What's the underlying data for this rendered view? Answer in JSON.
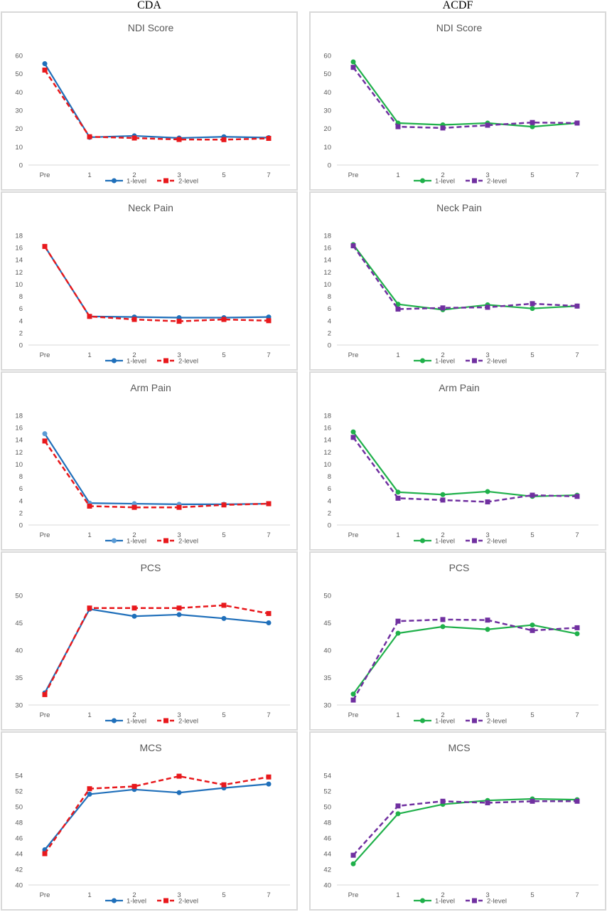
{
  "headers": {
    "left": "CDA",
    "right": "ACDF"
  },
  "chart_data": [
    {
      "type": "line",
      "group": "CDA",
      "title": "NDI Score",
      "categories": [
        "Pre",
        "1",
        "2",
        "3",
        "5",
        "7"
      ],
      "ylim": [
        0,
        60
      ],
      "yticks": [
        0,
        10,
        20,
        30,
        40,
        50,
        60
      ],
      "grid": false,
      "legend": "bottom",
      "series": [
        {
          "name": "1-level",
          "values": [
            55.5,
            15.2,
            16.0,
            14.8,
            15.5,
            15.0
          ],
          "color": "#1f6fba",
          "dash": false,
          "marker": "circle"
        },
        {
          "name": "2-level",
          "values": [
            52.0,
            15.5,
            14.8,
            14.0,
            13.9,
            14.6
          ],
          "color": "#e8181c",
          "dash": true,
          "marker": "square"
        }
      ]
    },
    {
      "type": "line",
      "group": "ACDF",
      "title": "NDI Score",
      "categories": [
        "Pre",
        "1",
        "2",
        "3",
        "5",
        "7"
      ],
      "ylim": [
        0,
        60
      ],
      "yticks": [
        0,
        10,
        20,
        30,
        40,
        50,
        60
      ],
      "grid": false,
      "legend": "bottom",
      "series": [
        {
          "name": "1-level",
          "values": [
            56.5,
            23.0,
            22.0,
            23.0,
            21.0,
            23.0
          ],
          "color": "#1fb04a",
          "dash": false,
          "marker": "circle"
        },
        {
          "name": "2-level",
          "values": [
            53.5,
            21.0,
            20.3,
            21.8,
            23.3,
            23.0
          ],
          "color": "#7030a0",
          "dash": true,
          "marker": "square"
        }
      ]
    },
    {
      "type": "line",
      "group": "CDA",
      "title": "Neck Pain",
      "categories": [
        "Pre",
        "1",
        "2",
        "3",
        "5",
        "7"
      ],
      "ylim": [
        0,
        18
      ],
      "yticks": [
        0,
        2,
        4,
        6,
        8,
        10,
        12,
        14,
        16,
        18
      ],
      "grid": false,
      "legend": "bottom",
      "series": [
        {
          "name": "1-level",
          "values": [
            16.2,
            4.7,
            4.6,
            4.5,
            4.5,
            4.6
          ],
          "color": "#1f6fba",
          "dash": false,
          "marker": "circle"
        },
        {
          "name": "2-level",
          "values": [
            16.2,
            4.7,
            4.2,
            3.9,
            4.2,
            4.0
          ],
          "color": "#e8181c",
          "dash": true,
          "marker": "square"
        }
      ]
    },
    {
      "type": "line",
      "group": "ACDF",
      "title": "Neck Pain",
      "categories": [
        "Pre",
        "1",
        "2",
        "3",
        "5",
        "7"
      ],
      "ylim": [
        0,
        18
      ],
      "yticks": [
        0,
        2,
        4,
        6,
        8,
        10,
        12,
        14,
        16,
        18
      ],
      "grid": false,
      "legend": "bottom",
      "series": [
        {
          "name": "1-level",
          "values": [
            16.5,
            6.7,
            5.8,
            6.6,
            6.0,
            6.4
          ],
          "color": "#1fb04a",
          "dash": false,
          "marker": "circle"
        },
        {
          "name": "2-level",
          "values": [
            16.3,
            5.9,
            6.1,
            6.2,
            6.8,
            6.4
          ],
          "color": "#7030a0",
          "dash": true,
          "marker": "square"
        }
      ]
    },
    {
      "type": "line",
      "group": "CDA",
      "title": "Arm Pain",
      "categories": [
        "Pre",
        "1",
        "2",
        "3",
        "5",
        "7"
      ],
      "ylim": [
        0,
        18
      ],
      "yticks": [
        0,
        2,
        4,
        6,
        8,
        10,
        12,
        14,
        16,
        18
      ],
      "grid": false,
      "legend": "bottom",
      "series": [
        {
          "name": "1-level",
          "values": [
            15.0,
            3.6,
            3.5,
            3.4,
            3.4,
            3.5
          ],
          "color": "#1f6fba",
          "dash": false,
          "marker": "circle",
          "marker_color": "#5b9bd5"
        },
        {
          "name": "2-level",
          "values": [
            13.8,
            3.1,
            2.9,
            2.9,
            3.3,
            3.5
          ],
          "color": "#e8181c",
          "dash": true,
          "marker": "square"
        }
      ]
    },
    {
      "type": "line",
      "group": "ACDF",
      "title": "Arm Pain",
      "categories": [
        "Pre",
        "1",
        "2",
        "3",
        "5",
        "7"
      ],
      "ylim": [
        0,
        18
      ],
      "yticks": [
        0,
        2,
        4,
        6,
        8,
        10,
        12,
        14,
        16,
        18
      ],
      "grid": false,
      "legend": "bottom",
      "series": [
        {
          "name": "1-level",
          "values": [
            15.3,
            5.4,
            5.0,
            5.5,
            4.7,
            4.9
          ],
          "color": "#1fb04a",
          "dash": false,
          "marker": "circle"
        },
        {
          "name": "2-level",
          "values": [
            14.4,
            4.4,
            4.1,
            3.8,
            4.9,
            4.7
          ],
          "color": "#7030a0",
          "dash": true,
          "marker": "square"
        }
      ]
    },
    {
      "type": "line",
      "group": "CDA",
      "title": "PCS",
      "categories": [
        "Pre",
        "1",
        "2",
        "3",
        "5",
        "7"
      ],
      "ylim": [
        30,
        50
      ],
      "yticks": [
        30,
        35,
        40,
        45,
        50
      ],
      "grid": false,
      "legend": "bottom",
      "series": [
        {
          "name": "1-level",
          "values": [
            32.2,
            47.5,
            46.2,
            46.5,
            45.8,
            45.0
          ],
          "color": "#1f6fba",
          "dash": false,
          "marker": "circle"
        },
        {
          "name": "2-level",
          "values": [
            31.9,
            47.7,
            47.7,
            47.7,
            48.2,
            46.7
          ],
          "color": "#e8181c",
          "dash": true,
          "marker": "square"
        }
      ]
    },
    {
      "type": "line",
      "group": "ACDF",
      "title": "PCS",
      "categories": [
        "Pre",
        "1",
        "2",
        "3",
        "5",
        "7"
      ],
      "ylim": [
        30,
        50
      ],
      "yticks": [
        30,
        35,
        40,
        45,
        50
      ],
      "grid": false,
      "legend": "bottom",
      "series": [
        {
          "name": "1-level",
          "values": [
            32.0,
            43.1,
            44.3,
            43.8,
            44.6,
            43.0
          ],
          "color": "#1fb04a",
          "dash": false,
          "marker": "circle"
        },
        {
          "name": "2-level",
          "values": [
            30.9,
            45.3,
            45.6,
            45.5,
            43.6,
            44.1
          ],
          "color": "#7030a0",
          "dash": true,
          "marker": "square"
        }
      ]
    },
    {
      "type": "line",
      "group": "CDA",
      "title": "MCS",
      "categories": [
        "Pre",
        "1",
        "2",
        "3",
        "5",
        "7"
      ],
      "ylim": [
        40,
        54
      ],
      "yticks": [
        40,
        42,
        44,
        46,
        48,
        50,
        52,
        54
      ],
      "grid": false,
      "legend": "bottom",
      "series": [
        {
          "name": "1-level",
          "values": [
            44.5,
            51.6,
            52.2,
            51.8,
            52.4,
            52.9
          ],
          "color": "#1f6fba",
          "dash": false,
          "marker": "circle"
        },
        {
          "name": "2-level",
          "values": [
            44.0,
            52.3,
            52.6,
            53.9,
            52.8,
            53.8
          ],
          "color": "#e8181c",
          "dash": true,
          "marker": "square"
        }
      ]
    },
    {
      "type": "line",
      "group": "ACDF",
      "title": "MCS",
      "categories": [
        "Pre",
        "1",
        "2",
        "3",
        "5",
        "7"
      ],
      "ylim": [
        40,
        54
      ],
      "yticks": [
        40,
        42,
        44,
        46,
        48,
        50,
        52,
        54
      ],
      "grid": false,
      "legend": "bottom",
      "series": [
        {
          "name": "1-level",
          "values": [
            42.7,
            49.1,
            50.3,
            50.8,
            51.0,
            50.9
          ],
          "color": "#1fb04a",
          "dash": false,
          "marker": "circle"
        },
        {
          "name": "2-level",
          "values": [
            43.8,
            50.1,
            50.7,
            50.5,
            50.7,
            50.7
          ],
          "color": "#7030a0",
          "dash": true,
          "marker": "square"
        }
      ]
    }
  ]
}
